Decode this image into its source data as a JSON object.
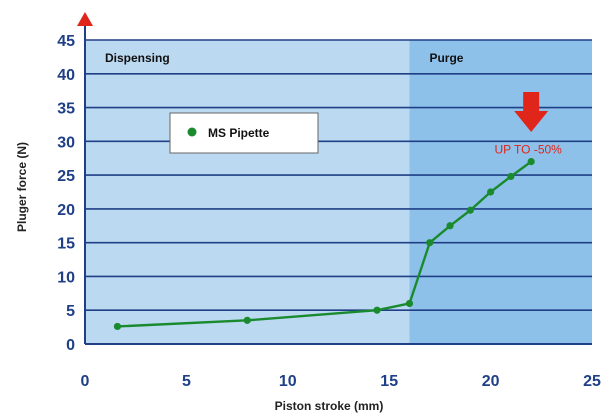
{
  "chart_data": {
    "type": "line",
    "xlabel": "Piston stroke (mm)",
    "ylabel": "Pluger force (N)",
    "xlim": [
      0,
      25
    ],
    "ylim": [
      0,
      45
    ],
    "x_ticks": [
      "0",
      "5",
      "10",
      "15",
      "20",
      "25"
    ],
    "y_ticks": [
      "0",
      "5",
      "10",
      "15",
      "20",
      "25",
      "30",
      "35",
      "40",
      "45"
    ],
    "grid": "horizontal",
    "regions": [
      {
        "label": "Dispensing",
        "from": 0,
        "to": 16
      },
      {
        "label": "Purge",
        "from": 16,
        "to": 25
      }
    ],
    "series": [
      {
        "name": "MS Pipette",
        "color": "#1a8a2e",
        "points": [
          {
            "x": 1.6,
            "y": 2.6
          },
          {
            "x": 8.0,
            "y": 3.5
          },
          {
            "x": 14.4,
            "y": 5.0
          },
          {
            "x": 16.0,
            "y": 6.0
          },
          {
            "x": 17.0,
            "y": 15.0
          },
          {
            "x": 18.0,
            "y": 17.5
          },
          {
            "x": 19.0,
            "y": 19.8
          },
          {
            "x": 20.0,
            "y": 22.5
          },
          {
            "x": 21.0,
            "y": 24.8
          },
          {
            "x": 22.0,
            "y": 27.0
          }
        ]
      }
    ],
    "annotation": {
      "text": "UP TO -50%",
      "x": 22.0,
      "y": 27.0,
      "color": "#e0251b"
    },
    "legend_position": "upper-left",
    "colors": {
      "plot_bg_left": "#bcd9f2",
      "plot_bg_right": "#8ec1ea",
      "grid": "#1f3f86",
      "axis_text": "#1f3f86",
      "arrow": "#e0251b"
    }
  }
}
